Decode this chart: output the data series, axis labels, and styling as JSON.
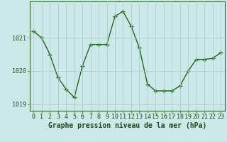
{
  "x": [
    0,
    1,
    2,
    3,
    4,
    5,
    6,
    7,
    8,
    9,
    10,
    11,
    12,
    13,
    14,
    15,
    16,
    17,
    18,
    19,
    20,
    21,
    22,
    23
  ],
  "y": [
    1021.2,
    1021.0,
    1020.5,
    1019.8,
    1019.45,
    1019.2,
    1020.15,
    1020.8,
    1020.8,
    1020.8,
    1021.65,
    1021.8,
    1021.35,
    1020.7,
    1019.6,
    1019.4,
    1019.4,
    1019.4,
    1019.55,
    1020.0,
    1020.35,
    1020.35,
    1020.38,
    1020.55
  ],
  "line_color": "#1a6b1a",
  "marker": "+",
  "marker_size": 4,
  "marker_lw": 1.0,
  "line_width": 1.0,
  "bg_color": "#cce8e8",
  "grid_color": "#aacccc",
  "axis_color": "#336633",
  "tick_label_color": "#1a4d1a",
  "xlabel": "Graphe pression niveau de la mer (hPa)",
  "xlabel_color": "#1a4d1a",
  "xlabel_fontsize": 7,
  "tick_fontsize": 6,
  "ylim": [
    1018.8,
    1022.1
  ],
  "yticks": [
    1019,
    1020,
    1021
  ],
  "xticks": [
    0,
    1,
    2,
    3,
    4,
    5,
    6,
    7,
    8,
    9,
    10,
    11,
    12,
    13,
    14,
    15,
    16,
    17,
    18,
    19,
    20,
    21,
    22,
    23
  ]
}
